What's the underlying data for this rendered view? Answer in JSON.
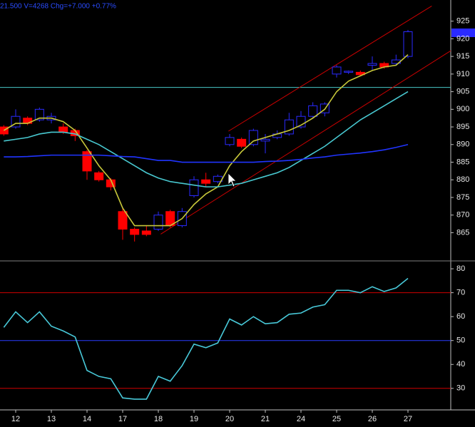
{
  "header": {
    "text": "21.500  V=4268  Chg=+7.000  +0.77%"
  },
  "chart_data": [
    {
      "type": "candlestick",
      "x": [
        0,
        1,
        2,
        3,
        4,
        5,
        6,
        7,
        8,
        9,
        10,
        11,
        12,
        13,
        14,
        15,
        16,
        17,
        18,
        19,
        20,
        21,
        22,
        23,
        24,
        25,
        26,
        27,
        28,
        29,
        30,
        31,
        32,
        33,
        34
      ],
      "open": [
        895,
        895,
        897.5,
        897,
        897,
        895,
        894,
        888,
        882,
        880,
        871,
        866,
        865.5,
        866,
        871,
        867,
        875.5,
        880,
        879.5,
        890,
        891.5,
        890,
        891,
        892,
        893,
        895,
        898,
        899,
        910,
        910.5,
        910.5,
        912.5,
        913,
        913,
        915
      ],
      "high": [
        895.5,
        900,
        898,
        900.5,
        899,
        896,
        894.5,
        888.5,
        882.5,
        880.5,
        872,
        866.5,
        867,
        871,
        871.5,
        872,
        881,
        882,
        881.5,
        893,
        892,
        894.5,
        893,
        894,
        899,
        899.5,
        902,
        902,
        912.5,
        911,
        911,
        915,
        913.5,
        915.5,
        922.5
      ],
      "low": [
        892.5,
        894.5,
        895.5,
        896.5,
        896,
        893,
        891,
        880,
        879.5,
        877,
        863,
        862.5,
        864,
        865.5,
        866.5,
        866.5,
        875,
        878,
        879,
        889.5,
        889,
        889.5,
        887.5,
        891.5,
        892.5,
        894.5,
        897.5,
        898,
        909,
        910,
        909.5,
        911,
        911.5,
        912.5,
        914.5
      ],
      "close": [
        893,
        898,
        896,
        900,
        898,
        893.5,
        892.5,
        882.5,
        880,
        878,
        866,
        864.5,
        864.5,
        870,
        867,
        871,
        880,
        879,
        881,
        892,
        889.5,
        894,
        891.5,
        893,
        897,
        898,
        901,
        901.5,
        912,
        910.8,
        909.8,
        913,
        912,
        914,
        922
      ],
      "up_color": "#2a2aff",
      "down_color": "#ff0000",
      "series": [
        {
          "color": "#c8c83a",
          "values": [
            894,
            896,
            896,
            897.5,
            897.5,
            896.5,
            894,
            889,
            884,
            880,
            872,
            867,
            867,
            867,
            867,
            869,
            873,
            876,
            878,
            884,
            888,
            891,
            892,
            893,
            894,
            895.5,
            897.5,
            900,
            905,
            908,
            909.5,
            911,
            912,
            912.5,
            915.5
          ]
        },
        {
          "color": "#48c8d0",
          "values": [
            891,
            891.5,
            892,
            893,
            893.5,
            893.5,
            893,
            891.5,
            890,
            888,
            886,
            884,
            882,
            880.5,
            879.5,
            879,
            878.5,
            878,
            878,
            878.5,
            879,
            880,
            881,
            882,
            883.5,
            885.5,
            887.5,
            889.5,
            892,
            894.5,
            897,
            899,
            901,
            903,
            905
          ]
        },
        {
          "color": "#2034ff",
          "values": [
            886.5,
            886.5,
            886.6,
            886.8,
            887,
            887,
            887,
            887,
            887,
            886.8,
            886.6,
            886.5,
            886,
            885.5,
            885.5,
            885,
            885,
            885,
            885,
            885,
            885,
            885,
            885.2,
            885.3,
            885.5,
            885.8,
            886.2,
            886.5,
            887,
            887.3,
            887.6,
            888,
            888.5,
            889.2,
            890
          ]
        }
      ],
      "trend_lines": [
        {
          "color": "#c80000",
          "x": [
            18.9,
            36
          ],
          "y": [
            893.8,
            929.3
          ]
        },
        {
          "color": "#c80000",
          "x": [
            13.2,
            37.6
          ],
          "y": [
            864.6,
            916.6
          ]
        }
      ],
      "hlines": [
        {
          "value": 906.2,
          "color": "#48c8c8"
        }
      ],
      "xlim": [
        -0.32,
        37.6
      ],
      "ylim": [
        857,
        931
      ],
      "yticks": [
        865,
        870,
        875,
        880,
        885,
        890,
        895,
        900,
        905,
        910,
        915,
        920,
        925
      ]
    },
    {
      "type": "line",
      "x": [
        0,
        1,
        2,
        3,
        4,
        5,
        6,
        7,
        8,
        9,
        10,
        11,
        12,
        13,
        14,
        15,
        16,
        17,
        18,
        19,
        20,
        21,
        22,
        23,
        24,
        25,
        26,
        27,
        28,
        29,
        30,
        31,
        32,
        33,
        34
      ],
      "series": [
        {
          "color": "#48c8d8",
          "values": [
            55.5,
            62,
            57.5,
            62,
            56,
            54,
            51.5,
            37.5,
            35,
            34,
            26,
            25.5,
            25.5,
            35,
            33,
            39.5,
            48.5,
            47,
            49,
            59,
            56.5,
            60,
            57,
            57.5,
            61,
            61.5,
            64,
            65,
            71,
            71,
            70,
            72.5,
            70.5,
            72,
            76
          ]
        }
      ],
      "hlines": [
        {
          "value": 70,
          "color": "#d00000"
        },
        {
          "value": 50,
          "color": "#2a3cff"
        },
        {
          "value": 30,
          "color": "#d00000"
        }
      ],
      "xlim": [
        -0.32,
        37.6
      ],
      "ylim": [
        21,
        82.7
      ],
      "yticks": [
        30,
        40,
        50,
        60,
        70,
        80
      ],
      "xticks": [
        {
          "value": 1,
          "label": "12"
        },
        {
          "value": 4,
          "label": "13"
        },
        {
          "value": 7,
          "label": "14"
        },
        {
          "value": 10,
          "label": "17"
        },
        {
          "value": 13,
          "label": "18"
        },
        {
          "value": 16,
          "label": "19"
        },
        {
          "value": 19,
          "label": "20"
        },
        {
          "value": 22,
          "label": "21"
        },
        {
          "value": 25,
          "label": "24"
        },
        {
          "value": 28,
          "label": "25"
        },
        {
          "value": 31,
          "label": "26"
        },
        {
          "value": 34,
          "label": "27"
        }
      ]
    }
  ]
}
